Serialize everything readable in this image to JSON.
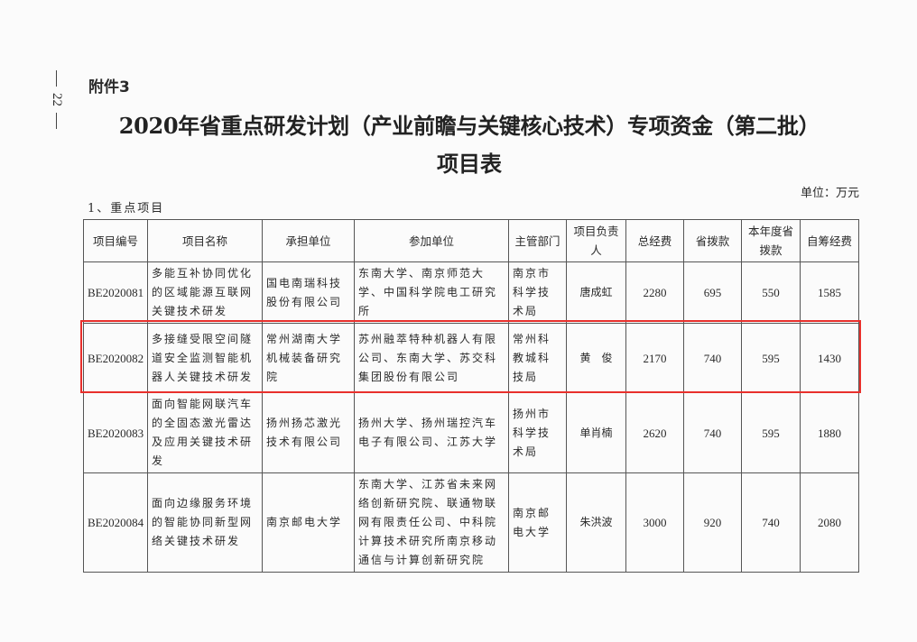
{
  "page_number": "22",
  "attachment": "附件3",
  "title_line1": "2020年省重点研发计划（产业前瞻与关键核心技术）专项资金（第二批）",
  "title_line2": "项目表",
  "unit": "单位：万元",
  "section": "1、重点项目",
  "highlight_color": "#e8302c",
  "table": {
    "headers": [
      "项目编号",
      "项目名称",
      "承担单位",
      "参加单位",
      "主管部门",
      "项目负责人",
      "总经费",
      "省拨款",
      "本年度省拨款",
      "自筹经费"
    ],
    "rows": [
      [
        "BE2020081",
        "多能互补协同优化的区域能源互联网关键技术研发",
        "国电南瑞科技股份有限公司",
        "东南大学、南京师范大学、中国科学院电工研究所",
        "南京市科学技术局",
        "唐成虹",
        "2280",
        "695",
        "550",
        "1585"
      ],
      [
        "BE2020082",
        "多接缝受限空间隧道安全监测智能机器人关键技术研发",
        "常州湖南大学机械装备研究院",
        "苏州融萃特种机器人有限公司、东南大学、苏交科集团股份有限公司",
        "常州科教城科技局",
        "黄　俊",
        "2170",
        "740",
        "595",
        "1430"
      ],
      [
        "BE2020083",
        "面向智能网联汽车的全固态激光雷达及应用关键技术研发",
        "扬州扬芯激光技术有限公司",
        "扬州大学、扬州瑞控汽车电子有限公司、江苏大学",
        "扬州市科学技术局",
        "单肖楠",
        "2620",
        "740",
        "595",
        "1880"
      ],
      [
        "BE2020084",
        "面向边缘服务环境的智能协同新型网络关键技术研发",
        "南京邮电大学",
        "东南大学、江苏省未来网络创新研究院、联通物联网有限责任公司、中科院计算技术研究所南京移动通信与计算创新研究院",
        "南京邮电大学",
        "朱洪波",
        "3000",
        "920",
        "740",
        "2080"
      ]
    ]
  }
}
